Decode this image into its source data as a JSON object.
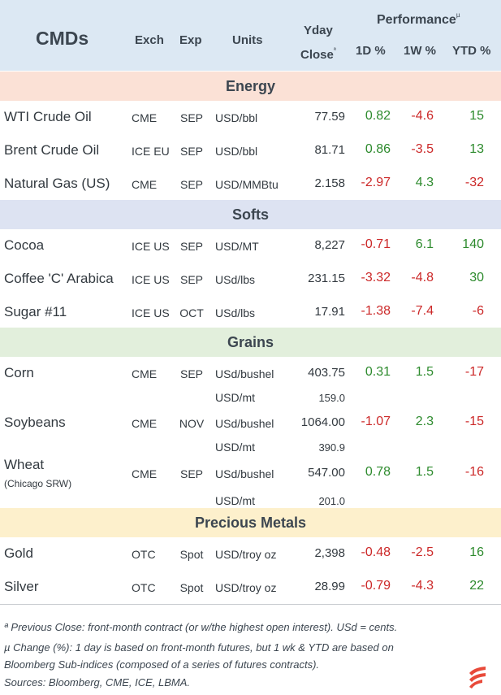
{
  "header": {
    "title": "CMDs",
    "exch": "Exch",
    "exp": "Exp",
    "units": "Units",
    "yday_line1": "Yday",
    "yday_line2": "Close",
    "yday_mark": "ª",
    "performance": "Performance",
    "perf_mark": "µ",
    "d1": "1D %",
    "w1": "1W %",
    "ytd": "YTD %"
  },
  "colors": {
    "header_bg": "#dce8f3",
    "energy_bg": "#fbe1d6",
    "softs_bg": "#dde3f2",
    "grains_bg": "#e2efdc",
    "metals_bg": "#fdf0cc",
    "positive": "#2e8b2e",
    "negative": "#cc2929",
    "logo": "#e84a3a"
  },
  "sections": [
    {
      "label": "Energy",
      "rows": [
        {
          "name": "WTI Crude Oil",
          "exch": "CME",
          "exp": "SEP",
          "units": "USD/bbl",
          "close": "77.59",
          "d1": "0.82",
          "w1": "-4.6",
          "ytd": "15"
        },
        {
          "name": "Brent Crude Oil",
          "exch": "ICE EU",
          "exp": "SEP",
          "units": "USD/bbl",
          "close": "81.71",
          "d1": "0.86",
          "w1": "-3.5",
          "ytd": "13"
        },
        {
          "name": "Natural Gas (US)",
          "exch": "CME",
          "exp": "SEP",
          "units": "USD/MMBtu",
          "close": "2.158",
          "d1": "-2.97",
          "w1": "4.3",
          "ytd": "-32"
        }
      ]
    },
    {
      "label": "Softs",
      "rows": [
        {
          "name": "Cocoa",
          "exch": "ICE US",
          "exp": "SEP",
          "units": "USD/MT",
          "close": "8,227",
          "d1": "-0.71",
          "w1": "6.1",
          "ytd": "140"
        },
        {
          "name": "Coffee 'C' Arabica",
          "exch": "ICE US",
          "exp": "SEP",
          "units": "USd/lbs",
          "close": "231.15",
          "d1": "-3.32",
          "w1": "-4.8",
          "ytd": "30"
        },
        {
          "name": "Sugar #11",
          "exch": "ICE US",
          "exp": "OCT",
          "units": "USd/lbs",
          "close": "17.91",
          "d1": "-1.38",
          "w1": "-7.4",
          "ytd": "-6"
        }
      ]
    },
    {
      "label": "Grains",
      "rows": [
        {
          "name": "Corn",
          "exch": "CME",
          "exp": "SEP",
          "units": "USd/bushel",
          "close": "403.75",
          "d1": "0.31",
          "w1": "1.5",
          "ytd": "-17",
          "alt_units": "USD/mt",
          "alt_close": "159.0"
        },
        {
          "name": "Soybeans",
          "exch": "CME",
          "exp": "NOV",
          "units": "USd/bushel",
          "close": "1064.00",
          "d1": "-1.07",
          "w1": "2.3",
          "ytd": "-15",
          "alt_units": "USD/mt",
          "alt_close": "390.9"
        },
        {
          "name": "Wheat",
          "subname": "(Chicago SRW)",
          "exch": "CME",
          "exp": "SEP",
          "units": "USd/bushel",
          "close": "547.00",
          "d1": "0.78",
          "w1": "1.5",
          "ytd": "-16",
          "alt_units": "USD/mt",
          "alt_close": "201.0"
        }
      ]
    },
    {
      "label": "Precious Metals",
      "rows": [
        {
          "name": "Gold",
          "exch": "OTC",
          "exp": "Spot",
          "units": "USD/troy oz",
          "close": "2,398",
          "d1": "-0.48",
          "w1": "-2.5",
          "ytd": "16"
        },
        {
          "name": "Silver",
          "exch": "OTC",
          "exp": "Spot",
          "units": "USD/troy oz",
          "close": "28.99",
          "d1": "-0.79",
          "w1": "-4.3",
          "ytd": "22"
        }
      ]
    }
  ],
  "footnotes": {
    "note1": "ª Previous Close: front-month contract (or w/the highest open interest). USd = cents.",
    "note2a": "µ  Change (%): 1 day is based on front-month futures, but 1 wk & YTD are based on",
    "note2b": "Bloomberg Sub-indices (composed of a series of futures contracts).",
    "sources": "Sources: Bloomberg, CME, ICE, LBMA."
  }
}
